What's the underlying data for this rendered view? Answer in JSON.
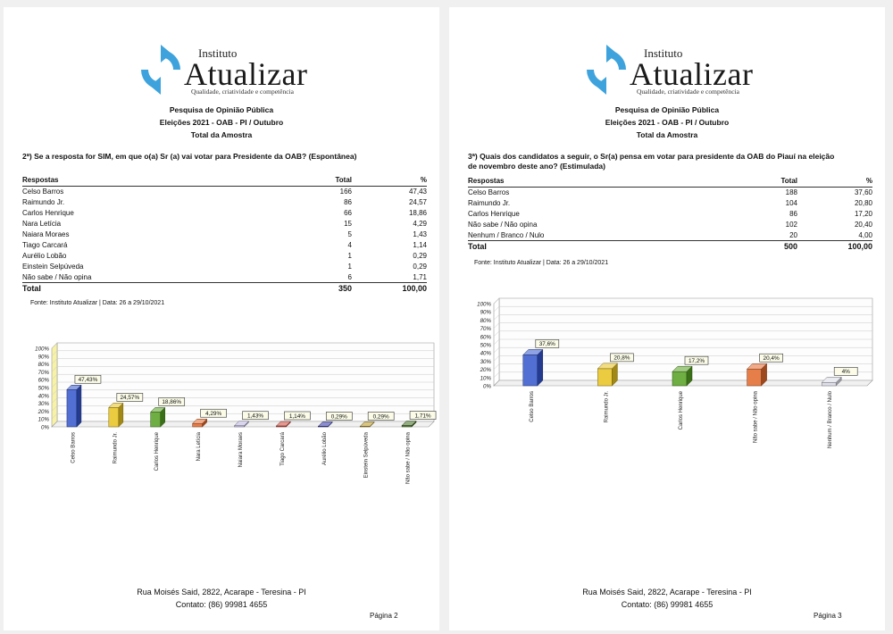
{
  "brand": {
    "sup": "Instituto",
    "name": "Atualizar",
    "tagline": "Qualidade, criatividade e competência"
  },
  "header": {
    "line1": "Pesquisa de Opinião Pública",
    "line2": "Eleições 2021 - OAB - PI / Outubro",
    "line3": "Total da Amostra"
  },
  "footer": {
    "address": "Rua Moisés Said, 2822, Acarape - Teresina  - PI",
    "contact": "Contato: (86) 99981 4655"
  },
  "pages": [
    {
      "question": "2ª) Se a resposta for SIM, em que o(a) Sr (a) vai votar para Presidente da OAB? (Espontânea)",
      "table": {
        "col_resp": "Respostas",
        "col_total": "Total",
        "col_pct": "%",
        "rows": [
          {
            "label": "Celso Barros",
            "total": "166",
            "pct": "47,43"
          },
          {
            "label": "Raimundo Jr.",
            "total": "86",
            "pct": "24,57"
          },
          {
            "label": "Carlos Henrique",
            "total": "66",
            "pct": "18,86"
          },
          {
            "label": "Nara Letícia",
            "total": "15",
            "pct": "4,29"
          },
          {
            "label": "Naiara Moraes",
            "total": "5",
            "pct": "1,43"
          },
          {
            "label": "Tiago Carcará",
            "total": "4",
            "pct": "1,14"
          },
          {
            "label": "Aurélio Lobão",
            "total": "1",
            "pct": "0,29"
          },
          {
            "label": "Einstein Selpúveda",
            "total": "1",
            "pct": "0,29"
          },
          {
            "label": "Não sabe / Não opina",
            "total": "6",
            "pct": "1,71"
          }
        ],
        "total_label": "Total",
        "total_value": "350",
        "total_pct": "100,00"
      },
      "source": "Fonte: Instituto Atualizar | Data: 26 a 29/10/2021",
      "page_label": "Página 2"
    },
    {
      "question": "3ª) Quais dos candidatos a seguir, o Sr(a) pensa em votar para presidente da OAB do Piauí na eleição de novembro deste ano? (Estimulada)",
      "table": {
        "col_resp": "Respostas",
        "col_total": "Total",
        "col_pct": "%",
        "rows": [
          {
            "label": "Celso Barros",
            "total": "188",
            "pct": "37,60"
          },
          {
            "label": "Raimundo Jr.",
            "total": "104",
            "pct": "20,80"
          },
          {
            "label": "Carlos Henrique",
            "total": "86",
            "pct": "17,20"
          },
          {
            "label": "Não sabe / Não opina",
            "total": "102",
            "pct": "20,40"
          },
          {
            "label": "Nenhum / Branco / Nulo",
            "total": "20",
            "pct": "4,00"
          }
        ],
        "total_label": "Total",
        "total_value": "500",
        "total_pct": "100,00"
      },
      "source": "Fonte: Instituto Atualizar | Data: 26 a 29/10/2021",
      "page_label": "Página 3"
    }
  ],
  "chart_data": [
    {
      "type": "bar",
      "categories": [
        "Celso Barros",
        "Raimundo Jr.",
        "Carlos Henrique",
        "Nara Letícia",
        "Naiara Moraes",
        "Tiago Carcará",
        "Aurélio Lobão",
        "Einstein Selpúveda",
        "Não sabe / Não opina"
      ],
      "values": [
        47.43,
        24.57,
        18.86,
        4.29,
        1.43,
        1.14,
        0.29,
        0.29,
        1.71
      ],
      "data_labels": [
        "47,43%",
        "24,57%",
        "18,86%",
        "4,29%",
        "1,43%",
        "1,14%",
        "0,29%",
        "0,29%",
        "1,71%"
      ],
      "colors": [
        "#3355cc",
        "#e8c21e",
        "#55a022",
        "#e2672a",
        "#b9b3dc",
        "#cc4436",
        "#2c2fa8",
        "#b8961c",
        "#3d6a1c"
      ],
      "yticks": [
        "0%",
        "10%",
        "20%",
        "30%",
        "40%",
        "50%",
        "60%",
        "70%",
        "80%",
        "90%",
        "100%"
      ],
      "ylim": [
        0,
        100
      ],
      "grid": true,
      "title": "",
      "xlabel": "",
      "ylabel": ""
    },
    {
      "type": "bar",
      "categories": [
        "Celso Barros",
        "Raimundo Jr.",
        "Carlos Henrique",
        "Não sabe / Não opina",
        "Nenhum / Branco / Nulo"
      ],
      "values": [
        37.6,
        20.8,
        17.2,
        20.4,
        4
      ],
      "data_labels": [
        "37,6%",
        "20,8%",
        "17,2%",
        "20,4%",
        "4%"
      ],
      "colors": [
        "#3355cc",
        "#e8c21e",
        "#55a022",
        "#e2672a",
        "#d9d9e6"
      ],
      "yticks": [
        "0%",
        "10%",
        "20%",
        "30%",
        "40%",
        "50%",
        "60%",
        "70%",
        "80%",
        "90%",
        "100%"
      ],
      "ylim": [
        0,
        100
      ],
      "grid": true,
      "title": "",
      "xlabel": "",
      "ylabel": ""
    }
  ]
}
